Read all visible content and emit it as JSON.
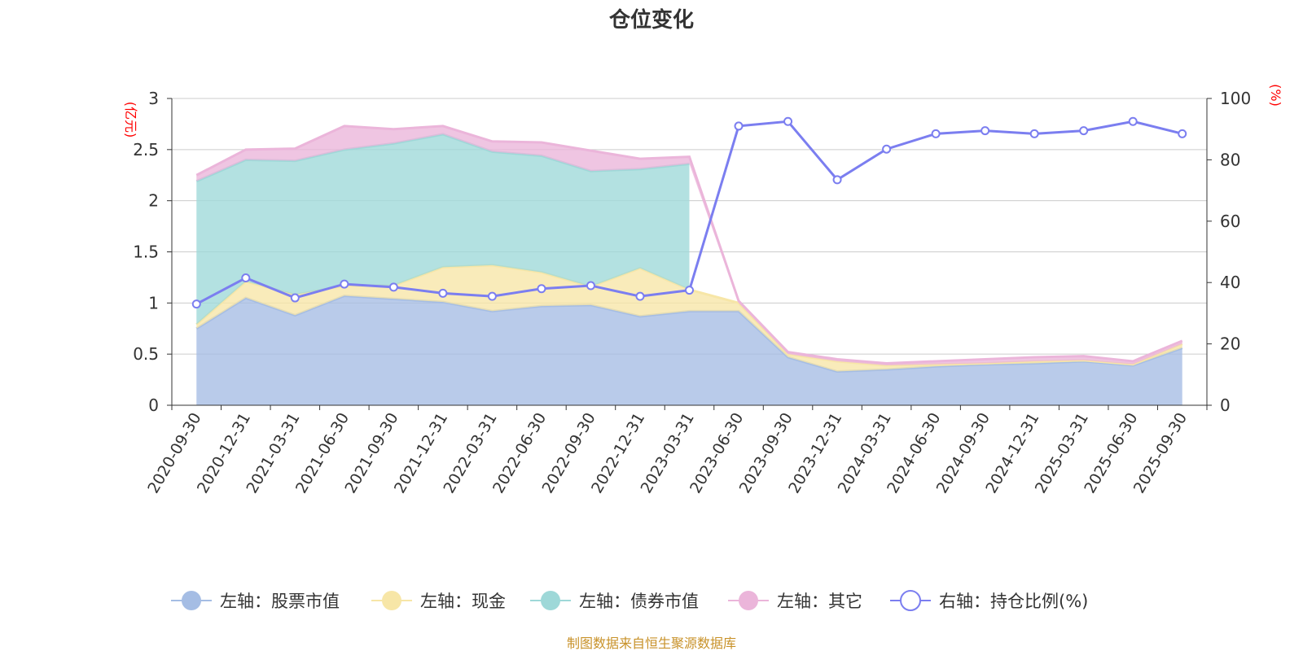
{
  "chart_data": {
    "type": "area",
    "title": "仓位变化",
    "left_axis_unit": "(亿元)",
    "right_axis_unit": "(%)",
    "left_ylim": [
      0,
      3
    ],
    "right_ylim": [
      0,
      100
    ],
    "left_ticks": [
      "0",
      "0.5",
      "1",
      "1.5",
      "2",
      "2.5",
      "3"
    ],
    "right_ticks": [
      "0",
      "20",
      "40",
      "60",
      "80",
      "100"
    ],
    "categories": [
      "2020-09-30",
      "2020-12-31",
      "2021-03-31",
      "2021-06-30",
      "2021-09-30",
      "2021-12-31",
      "2022-03-31",
      "2022-06-30",
      "2022-09-30",
      "2022-12-31",
      "2023-03-31",
      "2023-06-30",
      "2023-09-30",
      "2023-12-31",
      "2024-03-31",
      "2024-06-30",
      "2024-09-30",
      "2024-12-31",
      "2025-03-31",
      "2025-06-30",
      "2025-09-30"
    ],
    "series": [
      {
        "name": "左轴：股票市值",
        "axis": "left",
        "color": "#a5bde4",
        "values": [
          0.75,
          1.05,
          0.88,
          1.07,
          1.04,
          1.01,
          0.92,
          0.97,
          0.98,
          0.87,
          0.92,
          0.92,
          0.47,
          0.33,
          0.35,
          0.38,
          0.4,
          0.41,
          0.43,
          0.39,
          0.56
        ]
      },
      {
        "name": "左轴：现金",
        "axis": "left",
        "color": "#f7e6a7",
        "values": [
          0.04,
          0.16,
          0.2,
          0.1,
          0.13,
          0.34,
          0.45,
          0.33,
          0.18,
          0.47,
          0.21,
          0.08,
          0.03,
          0.1,
          0.04,
          0.02,
          0.01,
          0.02,
          0.01,
          0.01,
          0.04
        ]
      },
      {
        "name": "左轴：债券市值",
        "axis": "left",
        "color": "#9ed8d8",
        "values": [
          1.4,
          1.19,
          1.31,
          1.33,
          1.39,
          1.3,
          1.11,
          1.14,
          1.13,
          0.97,
          1.23,
          0,
          0,
          0,
          0,
          0,
          0,
          0,
          0,
          0,
          0
        ]
      },
      {
        "name": "左轴：其它",
        "axis": "left",
        "color": "#ebb5da",
        "values": [
          0.06,
          0.1,
          0.12,
          0.23,
          0.14,
          0.08,
          0.1,
          0.13,
          0.2,
          0.1,
          0.07,
          0.02,
          0.02,
          0.02,
          0.02,
          0.03,
          0.04,
          0.04,
          0.04,
          0.03,
          0.03
        ]
      },
      {
        "name": "右轴：持仓比例(%)",
        "axis": "right",
        "color": "#7b7ef0",
        "values": [
          33,
          41.5,
          35,
          39.5,
          38.5,
          36.5,
          35.5,
          38,
          39,
          35.5,
          37.5,
          91,
          92.5,
          73.5,
          83.5,
          88.5,
          89.5,
          88.5,
          89.5,
          92.5,
          88.5
        ]
      }
    ]
  },
  "source_note": "制图数据来自恒生聚源数据库"
}
